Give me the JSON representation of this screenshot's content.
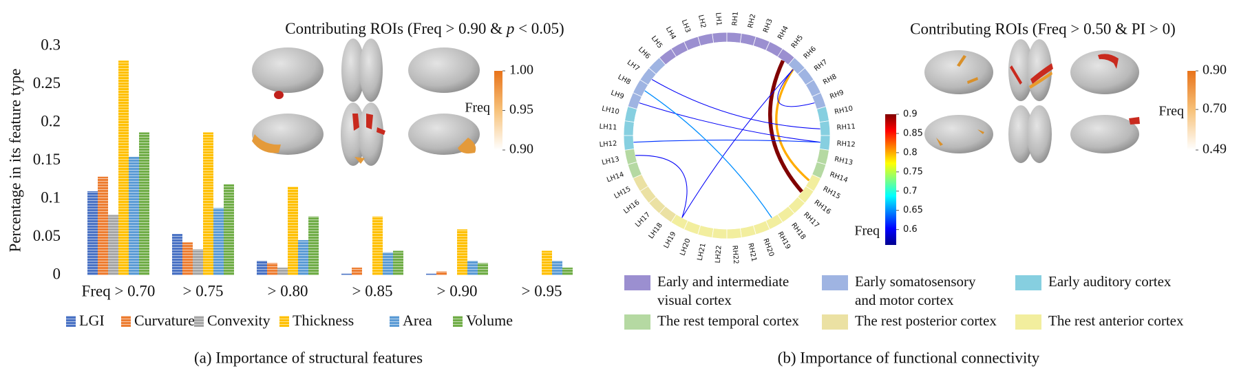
{
  "chart_data": {
    "type": "bar",
    "y_label": "Percentage in its feature type",
    "categories": [
      "Freq > 0.70",
      "> 0.75",
      "> 0.80",
      "> 0.85",
      "> 0.90",
      "> 0.95"
    ],
    "series": [
      {
        "name": "LGI",
        "color": "#4a72c4",
        "values": [
          0.11,
          0.054,
          0.019,
          0.002,
          0.002,
          0
        ]
      },
      {
        "name": "Curvature",
        "color": "#ed7d31",
        "values": [
          0.129,
          0.043,
          0.016,
          0.01,
          0.005,
          0
        ]
      },
      {
        "name": "Convexity",
        "color": "#a5a5a5",
        "values": [
          0.079,
          0.034,
          0.01,
          0,
          0,
          0
        ]
      },
      {
        "name": "Thickness",
        "color": "#ffc000",
        "values": [
          0.281,
          0.187,
          0.116,
          0.077,
          0.06,
          0.032
        ]
      },
      {
        "name": "Area",
        "color": "#5b9bd5",
        "values": [
          0.155,
          0.088,
          0.046,
          0.03,
          0.019,
          0.019
        ]
      },
      {
        "name": "Volume",
        "color": "#70ad47",
        "values": [
          0.187,
          0.119,
          0.077,
          0.032,
          0.016,
          0.01
        ]
      }
    ],
    "ylim": [
      0,
      0.3
    ],
    "yticks": [
      0,
      0.05,
      0.1,
      0.15,
      0.2,
      0.25,
      0.3
    ]
  },
  "panel_a": {
    "inset_title": [
      "Contributing ROIs (Freq > 0.90 & ",
      "p",
      " < 0.05)"
    ],
    "colorbar": {
      "label": "Freq",
      "lim": [
        0.9,
        1.0
      ],
      "ticks": [
        {
          "value": 1.0,
          "label": "1.00"
        },
        {
          "value": 0.95,
          "label": "0.95"
        },
        {
          "value": 0.9,
          "label": "0.90"
        }
      ]
    },
    "caption": "(a) Importance of structural features"
  },
  "panel_b": {
    "chord": {
      "nodes": [
        {
          "label": "LH1",
          "color": "#9b8fd0"
        },
        {
          "label": "LH2",
          "color": "#9b8fd0"
        },
        {
          "label": "LH3",
          "color": "#9b8fd0"
        },
        {
          "label": "LH4",
          "color": "#9b8fd0"
        },
        {
          "label": "LH5",
          "color": "#9b8fd0"
        },
        {
          "label": "LH6",
          "color": "#9fb4e2"
        },
        {
          "label": "LH7",
          "color": "#9fb4e2"
        },
        {
          "label": "LH8",
          "color": "#9fb4e2"
        },
        {
          "label": "LH9",
          "color": "#9fb4e2"
        },
        {
          "label": "LH10",
          "color": "#86cfe0"
        },
        {
          "label": "LH11",
          "color": "#86cfe0"
        },
        {
          "label": "LH12",
          "color": "#86cfe0"
        },
        {
          "label": "LH13",
          "color": "#b5d9a2"
        },
        {
          "label": "LH14",
          "color": "#b5d9a2"
        },
        {
          "label": "LH15",
          "color": "#ebe1a3"
        },
        {
          "label": "LH16",
          "color": "#ebe1a3"
        },
        {
          "label": "LH17",
          "color": "#ebe1a3"
        },
        {
          "label": "LH18",
          "color": "#ebe1a3"
        },
        {
          "label": "LH19",
          "color": "#f2ee9e"
        },
        {
          "label": "LH20",
          "color": "#f2ee9e"
        },
        {
          "label": "LH21",
          "color": "#f2ee9e"
        },
        {
          "label": "LH22",
          "color": "#f2ee9e"
        },
        {
          "label": "RH1",
          "color": "#9b8fd0"
        },
        {
          "label": "RH2",
          "color": "#9b8fd0"
        },
        {
          "label": "RH3",
          "color": "#9b8fd0"
        },
        {
          "label": "RH4",
          "color": "#9b8fd0"
        },
        {
          "label": "RH5",
          "color": "#9b8fd0"
        },
        {
          "label": "RH6",
          "color": "#9fb4e2"
        },
        {
          "label": "RH7",
          "color": "#9fb4e2"
        },
        {
          "label": "RH8",
          "color": "#9fb4e2"
        },
        {
          "label": "RH9",
          "color": "#9fb4e2"
        },
        {
          "label": "RH10",
          "color": "#86cfe0"
        },
        {
          "label": "RH11",
          "color": "#86cfe0"
        },
        {
          "label": "RH12",
          "color": "#86cfe0"
        },
        {
          "label": "RH13",
          "color": "#b5d9a2"
        },
        {
          "label": "RH14",
          "color": "#b5d9a2"
        },
        {
          "label": "RH15",
          "color": "#f2ee9e"
        },
        {
          "label": "RH16",
          "color": "#f2ee9e"
        },
        {
          "label": "RH17",
          "color": "#f2ee9e"
        },
        {
          "label": "RH18",
          "color": "#f2ee9e"
        },
        {
          "label": "RH19",
          "color": "#f2ee9e"
        },
        {
          "label": "RH20",
          "color": "#f2ee9e"
        },
        {
          "label": "RH21",
          "color": "#f2ee9e"
        },
        {
          "label": "RH22",
          "color": "#f2ee9e"
        }
      ],
      "edges": [
        {
          "from": "RH5",
          "to": "RH16",
          "freq": 0.9
        },
        {
          "from": "RH6",
          "to": "RH15",
          "freq": 0.8
        },
        {
          "from": "RH6",
          "to": "RH9",
          "freq": 0.6
        },
        {
          "from": "LH7",
          "to": "RH11",
          "freq": 0.6
        },
        {
          "from": "LH9",
          "to": "RH12",
          "freq": 0.6
        },
        {
          "from": "LH12",
          "to": "RH12",
          "freq": 0.62
        },
        {
          "from": "LH13",
          "to": "LH19",
          "freq": 0.6
        },
        {
          "from": "LH19",
          "to": "RH6",
          "freq": 0.6
        },
        {
          "from": "LH8",
          "to": "RH19",
          "freq": 0.65
        }
      ],
      "colorbar": {
        "label": "Freq",
        "lim": [
          0.56,
          0.9
        ],
        "ticks": [
          0.9,
          0.85,
          0.8,
          0.75,
          0.7,
          0.65,
          0.6
        ]
      }
    },
    "inset_title": "Contributing ROIs (Freq > 0.50 & PI > 0)",
    "colorbar": {
      "label": "Freq",
      "lim": [
        0.49,
        0.9
      ],
      "ticks": [
        {
          "value": 0.9,
          "label": "0.90"
        },
        {
          "value": 0.7,
          "label": "0.70"
        },
        {
          "value": 0.49,
          "label": "0.49"
        }
      ]
    },
    "legend": [
      {
        "label": [
          "Early and intermediate",
          "visual cortex"
        ],
        "color": "#9b8fd0"
      },
      {
        "label": [
          "Early somatosensory",
          "and motor cortex"
        ],
        "color": "#9fb4e2"
      },
      {
        "label": [
          "Early auditory cortex"
        ],
        "color": "#86cfe0"
      },
      {
        "label": [
          "The rest temporal cortex"
        ],
        "color": "#b5d9a2"
      },
      {
        "label": [
          "The rest posterior cortex"
        ],
        "color": "#ebe1a3"
      },
      {
        "label": [
          "The rest anterior cortex"
        ],
        "color": "#f2ee9e"
      }
    ],
    "caption": "(b) Importance of functional connectivity"
  }
}
